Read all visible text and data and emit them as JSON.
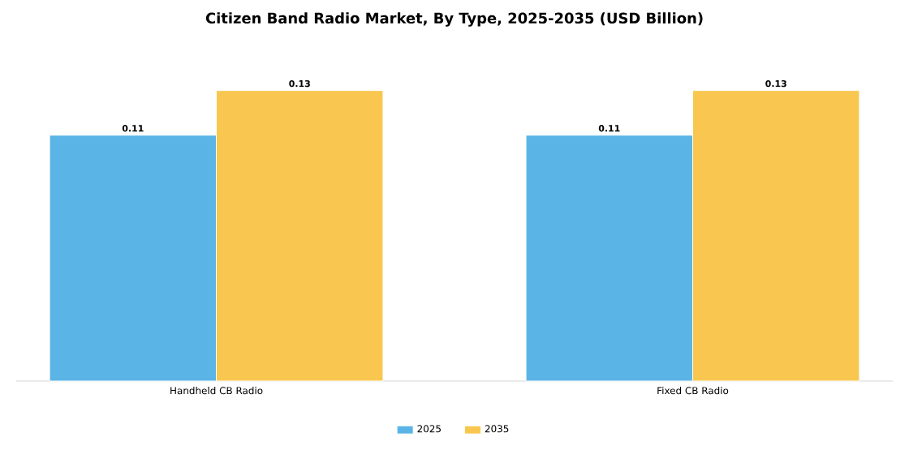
{
  "chart_data": {
    "type": "bar",
    "title": "Citizen Band Radio Market, By Type, 2025-2035 (USD Billion)",
    "categories": [
      "Handheld CB Radio",
      "Fixed CB Radio"
    ],
    "series": [
      {
        "name": "2025",
        "color": "#5ab4e6",
        "values": [
          0.11,
          0.11
        ]
      },
      {
        "name": "2035",
        "color": "#f9c74f",
        "values": [
          0.13,
          0.13
        ]
      }
    ],
    "data_labels": true,
    "legend": "bottom",
    "grid": false
  }
}
